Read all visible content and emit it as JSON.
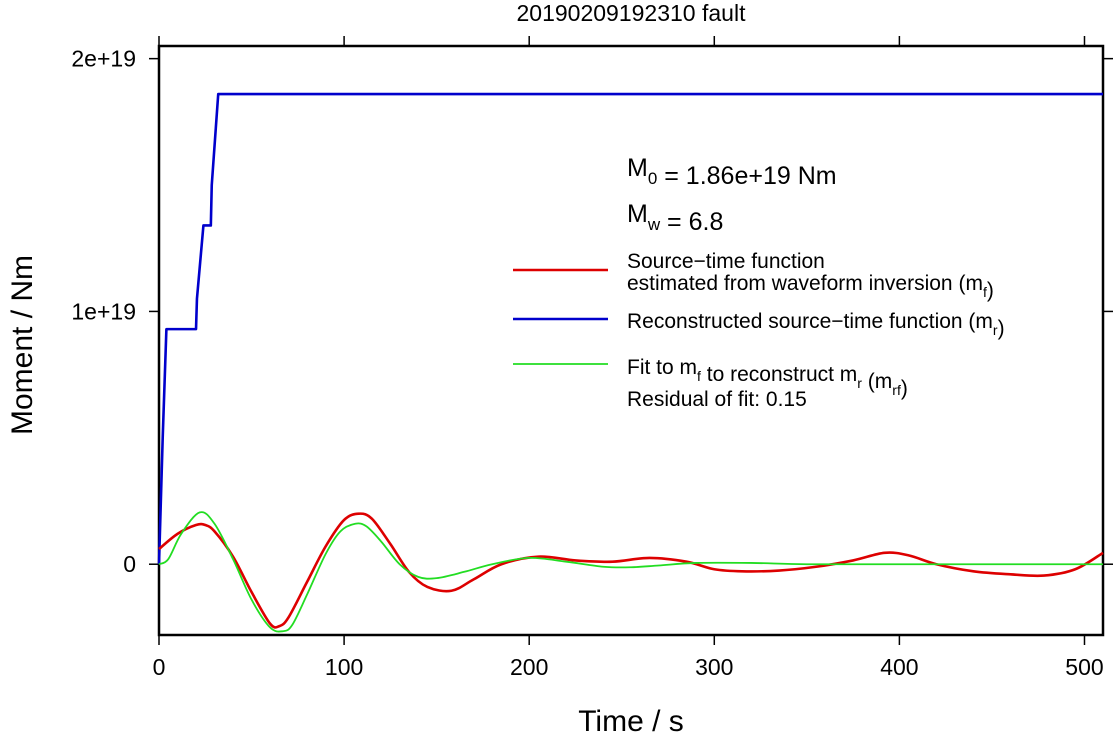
{
  "chart_data": {
    "type": "line",
    "title": "20190209192310 fault",
    "xlabel": "Time / s",
    "ylabel": "Moment / Nm",
    "xlim": [
      0,
      510
    ],
    "ylim": [
      -2.8e+18,
      2.05e+19
    ],
    "x_ticks": [
      0,
      100,
      200,
      300,
      400,
      500
    ],
    "x_tick_labels": [
      "0",
      "100",
      "200",
      "300",
      "400",
      "500"
    ],
    "y_ticks": [
      0,
      1e+19,
      2e+19
    ],
    "y_tick_labels": [
      "0",
      "1e+19",
      "2e+19"
    ],
    "grid": false,
    "legend_position": "right",
    "annotations": {
      "m0": {
        "sym": "M",
        "sub": "0",
        "text": " = 1.86e+19 Nm"
      },
      "mw": {
        "sym": "M",
        "sub": "w",
        "text": " = 6.8"
      },
      "residual": "Residual of fit: 0.15"
    },
    "series": [
      {
        "name": "Source−time function estimated from waveform inversion (mf)",
        "legend_lines": [
          [
            {
              "t": "Source−time function"
            }
          ],
          [
            {
              "t": "estimated from waveform inversion (m"
            },
            {
              "t": "f",
              "sub": true
            },
            {
              "t": ")"
            }
          ]
        ],
        "color": "#dd0000",
        "width": 2.6,
        "x": [
          0,
          10,
          20,
          25,
          30,
          40,
          50,
          60,
          65,
          70,
          80,
          90,
          100,
          108,
          115,
          125,
          135,
          145,
          158,
          170,
          185,
          205,
          225,
          245,
          265,
          285,
          300,
          315,
          335,
          355,
          375,
          392,
          405,
          420,
          440,
          460,
          478,
          495,
          510
        ],
        "y": [
          6e+17,
          1.2e+18,
          1.55e+18,
          1.55e+18,
          1.3e+18,
          3e+17,
          -1.1e+18,
          -2.35e+18,
          -2.45e+18,
          -2.1e+18,
          -7e+17,
          7e+17,
          1.75e+18,
          2e+18,
          1.8e+18,
          8e+17,
          -3e+17,
          -9e+17,
          -1.05e+18,
          -6e+17,
          0,
          3e+17,
          1.5e+17,
          1e+17,
          2.5e+17,
          1e+17,
          -2e+17,
          -2.8e+17,
          -2.5e+17,
          -1e+17,
          1.5e+17,
          4.5e+17,
          3.5e+17,
          0,
          -2.8e+17,
          -4e+17,
          -4.5e+17,
          -2e+17,
          4.5e+17
        ]
      },
      {
        "name": "Reconstructed source−time function (mr)",
        "legend_lines": [
          [
            {
              "t": "Reconstructed source−time function (m"
            },
            {
              "t": "r",
              "sub": true
            },
            {
              "t": ")"
            }
          ]
        ],
        "color": "#0000cc",
        "width": 2.6,
        "x": [
          0,
          2,
          4,
          20,
          20.5,
          24,
          24.5,
          28,
          28.5,
          32,
          510
        ],
        "y": [
          0,
          5e+18,
          9.3e+18,
          9.3e+18,
          1.05e+19,
          1.34e+19,
          1.34e+19,
          1.34e+19,
          1.5e+19,
          1.86e+19,
          1.86e+19
        ]
      },
      {
        "name": "Fit to mf to reconstruct mr (mrf)",
        "legend_lines": [
          [
            {
              "t": "Fit to m"
            },
            {
              "t": "f",
              "sub": true
            },
            {
              "t": " to reconstruct m"
            },
            {
              "t": "r",
              "sub": true
            },
            {
              "t": " (m"
            },
            {
              "t": "rf",
              "sub": true
            },
            {
              "t": ")"
            }
          ]
        ],
        "color": "#22dd22",
        "width": 1.8,
        "x": [
          0,
          5,
          12,
          22,
          30,
          40,
          50,
          60,
          67,
          72,
          80,
          90,
          98,
          106,
          112,
          120,
          130,
          140,
          150,
          165,
          180,
          200,
          220,
          240,
          255,
          270,
          290,
          320,
          350,
          400,
          450,
          510
        ],
        "y": [
          0,
          2e+17,
          1.2e+18,
          2.05e+18,
          1.6e+18,
          2e+17,
          -1.4e+18,
          -2.5e+18,
          -2.65e+18,
          -2.4e+18,
          -1.2e+18,
          4e+17,
          1.3e+18,
          1.6e+18,
          1.5e+18,
          9e+17,
          0,
          -5e+17,
          -5.5e+17,
          -3e+17,
          0,
          2.5e+17,
          1e+17,
          -1e+17,
          -1.2e+17,
          -5e+16,
          5e+16,
          5e+16,
          0,
          0,
          0,
          0
        ]
      }
    ]
  }
}
